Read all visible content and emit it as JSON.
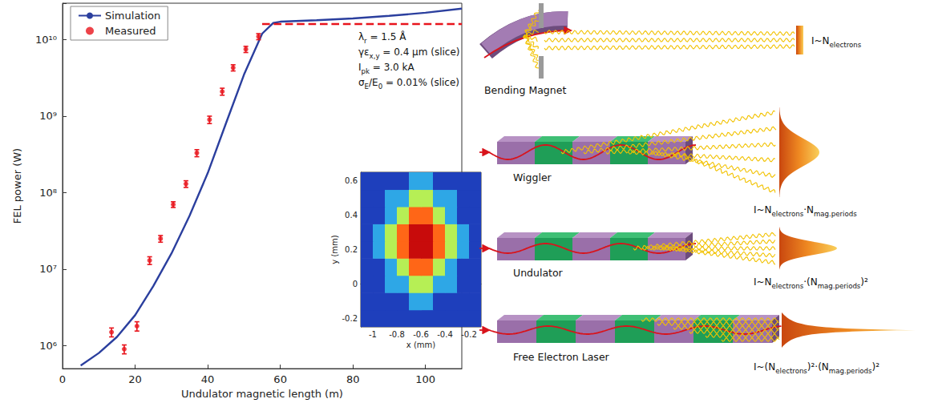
{
  "chart_data": [
    {
      "type": "line",
      "xlabel": "Undulator magnetic length (m)",
      "ylabel": "FEL power (W)",
      "log": "y",
      "grid": false,
      "legend": "upper left",
      "xlim": [
        0,
        110
      ],
      "xticks": [
        0,
        20,
        40,
        60,
        80,
        100
      ],
      "ylim": [
        500000,
        30000000000
      ],
      "yticks": [
        {
          "value": 1000000,
          "label": "10⁶"
        },
        {
          "value": 10000000,
          "label": "10⁷"
        },
        {
          "value": 100000000,
          "label": "10⁸"
        },
        {
          "value": 1000000000,
          "label": "10⁹"
        },
        {
          "value": 10000000000,
          "label": "10¹⁰"
        }
      ],
      "series": [
        {
          "name": "Simulation",
          "type": "line",
          "color": "#2b3f9e",
          "line_style": "solid",
          "marker": "none",
          "x": [
            5,
            10,
            15,
            20,
            25,
            30,
            35,
            40,
            45,
            50,
            55,
            58,
            60,
            70,
            80,
            90,
            100,
            110
          ],
          "values": [
            550000,
            800000,
            1300000,
            2500000,
            6000000,
            16000000,
            50000000,
            180000000,
            800000000,
            3500000000,
            12000000000,
            16500000000,
            17200000000,
            18000000000,
            19000000000,
            20500000000,
            22500000000,
            25500000000
          ]
        },
        {
          "name": "Measured",
          "type": "scatter",
          "color": "#e8141c",
          "marker": "circle",
          "x": [
            13.5,
            17,
            20.5,
            24,
            27,
            30.5,
            34,
            37,
            40.5,
            44,
            47,
            50.5,
            54
          ],
          "values": [
            1500000,
            900000,
            1800000,
            13000000,
            25000000,
            70000000,
            130000000,
            330000000,
            900000000,
            2100000000,
            4300000000,
            7500000000,
            11000000000
          ],
          "errors": [
            200000,
            120000,
            250000,
            1500000,
            2500000,
            6000000,
            13000000,
            35000000,
            100000000,
            220000000,
            400000000,
            700000000,
            1000000000
          ]
        },
        {
          "type": "line",
          "color": "#e8141c",
          "line_style": "dashed",
          "marker": "none",
          "x": [
            55,
            110
          ],
          "values": [
            16000000000,
            16000000000
          ]
        }
      ],
      "annotations": [
        [
          {
            "text": "λ"
          },
          {
            "text": "r",
            "sub": true
          },
          {
            "text": " = 1.5 Å"
          }
        ],
        [
          {
            "text": "γε"
          },
          {
            "text": "x,y",
            "sub": true
          },
          {
            "text": " = 0.4 μm (slice)"
          }
        ],
        [
          {
            "text": "I"
          },
          {
            "text": "pk",
            "sub": true
          },
          {
            "text": " = 3.0 kA"
          }
        ],
        [
          {
            "text": "σ"
          },
          {
            "text": "E",
            "sub": true
          },
          {
            "text": "/E"
          },
          {
            "text": "0",
            "sub": true
          },
          {
            "text": " = 0.01% (slice)"
          }
        ]
      ]
    },
    {
      "type": "heatmap",
      "xlabel": "x (mm)",
      "ylabel": "y (mm)",
      "grid": false,
      "xlim": [
        -1.1,
        -0.1
      ],
      "xticks": [
        -1,
        -0.8,
        -0.6,
        -0.4,
        -0.2
      ],
      "ylim": [
        -0.25,
        0.65
      ],
      "yticks": [
        -0.2,
        0,
        0.2,
        0.4,
        0.6
      ],
      "x_edges": [
        -1.1,
        -1.0,
        -0.9,
        -0.8,
        -0.7,
        -0.6,
        -0.5,
        -0.4,
        -0.3,
        -0.2,
        -0.1
      ],
      "y_edges": [
        -0.25,
        -0.15,
        -0.05,
        0.05,
        0.15,
        0.25,
        0.35,
        0.45,
        0.55,
        0.65
      ],
      "zlim": [
        0,
        1
      ],
      "cells": [
        [
          0.05,
          0.05,
          0.05,
          0.05,
          0.05,
          0.05,
          0.05,
          0.05,
          0.05,
          0.05
        ],
        [
          0.05,
          0.05,
          0.05,
          0.05,
          0.35,
          0.35,
          0.05,
          0.05,
          0.05,
          0.05
        ],
        [
          0.05,
          0.05,
          0.35,
          0.35,
          0.6,
          0.6,
          0.35,
          0.35,
          0.05,
          0.05
        ],
        [
          0.05,
          0.05,
          0.35,
          0.6,
          0.85,
          0.85,
          0.6,
          0.35,
          0.05,
          0.05
        ],
        [
          0.05,
          0.35,
          0.6,
          0.85,
          1,
          1,
          0.85,
          0.6,
          0.35,
          0.05
        ],
        [
          0.05,
          0.35,
          0.6,
          0.85,
          1,
          1,
          0.85,
          0.6,
          0.35,
          0.05
        ],
        [
          0.05,
          0.05,
          0.35,
          0.6,
          0.85,
          0.85,
          0.6,
          0.35,
          0.05,
          0.05
        ],
        [
          0.05,
          0.05,
          0.35,
          0.35,
          0.6,
          0.6,
          0.35,
          0.35,
          0.05,
          0.05
        ],
        [
          0.05,
          0.05,
          0.05,
          0.05,
          0.35,
          0.35,
          0.05,
          0.05,
          0.05,
          0.05
        ]
      ]
    }
  ],
  "diagram": {
    "rows": [
      {
        "label": "Bending Magnet",
        "formula": [
          {
            "text": "I~N"
          },
          {
            "text": "electrons",
            "sub": true
          }
        ]
      },
      {
        "label": "Wiggler",
        "formula": [
          {
            "text": "I~N"
          },
          {
            "text": "electrons",
            "sub": true
          },
          {
            "text": "·N"
          },
          {
            "text": "mag.periods",
            "sub": true
          }
        ]
      },
      {
        "label": "Undulator",
        "formula": [
          {
            "text": "I~N"
          },
          {
            "text": "electrons",
            "sub": true
          },
          {
            "text": "·(N"
          },
          {
            "text": "mag.periods",
            "sub": true
          },
          {
            "text": ")²"
          }
        ]
      },
      {
        "label": "Free Electron Laser",
        "formula": [
          {
            "text": "I~(N"
          },
          {
            "text": "electrons",
            "sub": true
          },
          {
            "text": ")²·(N"
          },
          {
            "text": "mag.periods",
            "sub": true
          },
          {
            "text": ")²"
          }
        ]
      }
    ]
  }
}
